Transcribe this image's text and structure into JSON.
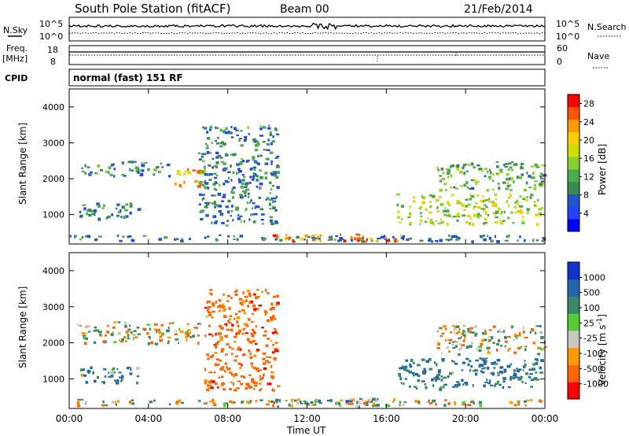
{
  "header": {
    "station": "South Pole Station (fitACF)",
    "beam": "Beam 00",
    "date": "21/Feb/2014"
  },
  "strips": {
    "nsky_label": "N.Sky",
    "nsky_ticks": [
      "10^5",
      "10^0"
    ],
    "nsearch_label": "N.Search",
    "nsearch_ticks": [
      "10^5",
      "10^0"
    ],
    "freq_label": "Freq.",
    "freq_unit": "[MHz]",
    "freq_ticks": [
      "18",
      "8"
    ],
    "nave_label": "Nave",
    "nave_ticks": [
      "60",
      "0"
    ],
    "cpid_label": "CPID",
    "cpid_value": "normal (fast) 151 RF"
  },
  "colors": {
    "power": [
      "#0000ff",
      "#2244ff",
      "#2255cc",
      "#3a8a55",
      "#4caa50",
      "#88d030",
      "#ccdd00",
      "#ffcc00",
      "#ff9900",
      "#ff5500",
      "#ff0000"
    ],
    "velocity": [
      "#1133cc",
      "#2266aa",
      "#3a8866",
      "#55cc33",
      "#c8c8c0",
      "#ff9900",
      "#ff6600",
      "#ff0000"
    ]
  },
  "chart_data": [
    {
      "type": "heatmap",
      "title": "",
      "ylabel": "Slant Range [km]",
      "xlabel": "",
      "ylim": [
        180,
        4500
      ],
      "xlim": [
        0,
        24
      ],
      "y_ticks": [
        "1000",
        "2000",
        "3000",
        "4000"
      ],
      "colorbar_label": "Power [dB]",
      "colorbar_ticks": [
        "4",
        "8",
        "12",
        "16",
        "20",
        "24",
        "28"
      ],
      "colorbar_range": [
        0,
        30
      ],
      "grid": false,
      "features": [
        {
          "name": "ground_scatter",
          "x": [
            0.0,
            24.0
          ],
          "y": [
            280,
            450
          ],
          "value": 8
        },
        {
          "name": "near_range_band",
          "x": [
            10.0,
            16.8
          ],
          "y": [
            260,
            480
          ],
          "value": 24
        },
        {
          "name": "f_region_band_early",
          "x": [
            0.3,
            5.0
          ],
          "y": [
            2100,
            2500
          ],
          "value": 10
        },
        {
          "name": "f_region_enhancement",
          "x": [
            5.3,
            6.8
          ],
          "y": [
            1800,
            2300
          ],
          "value": 22
        },
        {
          "name": "lower_echoes_early",
          "x": [
            0.5,
            3.5
          ],
          "y": [
            900,
            1350
          ],
          "value": 8
        },
        {
          "name": "morning_streaks",
          "x": [
            6.5,
            10.5
          ],
          "y": [
            700,
            3500
          ],
          "value": 9
        },
        {
          "name": "afternoon_band",
          "x": [
            16.5,
            23.8
          ],
          "y": [
            750,
            1600
          ],
          "value": 16
        },
        {
          "name": "evening_upper",
          "x": [
            18.5,
            24.0
          ],
          "y": [
            1700,
            2500
          ],
          "value": 12
        }
      ]
    },
    {
      "type": "heatmap",
      "title": "",
      "ylabel": "Slant Range [km]",
      "xlabel": "Time UT",
      "ylim": [
        180,
        4500
      ],
      "xlim": [
        0,
        24
      ],
      "x_ticks": [
        "00:00",
        "04:00",
        "08:00",
        "12:00",
        "16:00",
        "20:00",
        "00:00"
      ],
      "y_ticks": [
        "1000",
        "2000",
        "3000",
        "4000"
      ],
      "colorbar_label": "Velocity [m s^-1]",
      "colorbar_ticks": [
        "1000",
        "500",
        "100",
        "25",
        "-25",
        "-100",
        "-500",
        "-1000"
      ],
      "colorbar_range": [
        -1200,
        1200
      ],
      "grid": false,
      "features": [
        {
          "name": "ground_scatter",
          "x": [
            0.0,
            24.0
          ],
          "y": [
            280,
            450
          ],
          "value": 0
        },
        {
          "name": "near_range_band",
          "x": [
            10.0,
            16.8
          ],
          "y": [
            260,
            480
          ],
          "value": 150
        },
        {
          "name": "f_region_band_early",
          "x": [
            0.3,
            6.5
          ],
          "y": [
            2000,
            2600
          ],
          "value": 0
        },
        {
          "name": "morning_streaks",
          "x": [
            6.8,
            10.5
          ],
          "y": [
            700,
            3500
          ],
          "value": -300
        },
        {
          "name": "lower_echoes_early",
          "x": [
            0.5,
            3.5
          ],
          "y": [
            900,
            1350
          ],
          "value": 200
        },
        {
          "name": "afternoon_band",
          "x": [
            16.5,
            23.8
          ],
          "y": [
            750,
            1600
          ],
          "value": 300
        },
        {
          "name": "evening_upper",
          "x": [
            18.5,
            24.0
          ],
          "y": [
            1700,
            2500
          ],
          "value": 0
        }
      ]
    }
  ]
}
